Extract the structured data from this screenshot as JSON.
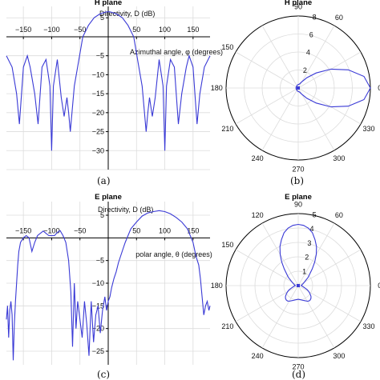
{
  "chart_data": [
    {
      "panel": "(a)",
      "type": "line",
      "title": "H plane",
      "xlabel": "Azimuthal angle, φ (degrees)",
      "ylabel": "Directivity, D (dB)",
      "xlim": [
        -180,
        180
      ],
      "ylim": [
        -35,
        8
      ],
      "xticks": [
        -150,
        -100,
        -50,
        50,
        100,
        150
      ],
      "yticks": [
        5,
        -5,
        -10,
        -15,
        -20,
        -25,
        -30
      ],
      "grid": true,
      "series": [
        {
          "x": [
            -180,
            -170,
            -162,
            -157,
            -150,
            -143,
            -138,
            -130,
            -124,
            -117,
            -110,
            -103,
            -100,
            -97,
            -90,
            -83,
            -78,
            -73,
            -70,
            -67,
            -60,
            -53,
            -45,
            -35,
            -25,
            -15,
            -5,
            0,
            5,
            15,
            25,
            35,
            45,
            53,
            60,
            67,
            70,
            73,
            78,
            83,
            90,
            97,
            100,
            103,
            110,
            117,
            124,
            130,
            138,
            143,
            150,
            157,
            162,
            170,
            180
          ],
          "y": [
            -5,
            -8,
            -15,
            -23,
            -8,
            -5,
            -8,
            -15,
            -23,
            -8,
            -6,
            -13,
            -30,
            -13,
            -6,
            -16,
            -21,
            -16,
            -20,
            -25,
            -13,
            -7,
            0,
            3,
            5,
            6,
            6.5,
            6.6,
            6.5,
            6,
            5,
            3,
            0,
            -7,
            -13,
            -25,
            -20,
            -16,
            -21,
            -16,
            -6,
            -13,
            -30,
            -13,
            -6,
            -8,
            -23,
            -15,
            -8,
            -5,
            -8,
            -23,
            -15,
            -8,
            -5
          ]
        }
      ]
    },
    {
      "panel": "(b)",
      "type": "polar",
      "title": "H plane",
      "rlim": [
        0,
        8
      ],
      "rticks": [
        2,
        4,
        6,
        8
      ],
      "angle_ticks": [
        0,
        30,
        60,
        90,
        120,
        150,
        180,
        210,
        240,
        270,
        300,
        330
      ],
      "angle_labels": [
        "0",
        "",
        "60",
        "90",
        "",
        "150",
        "180",
        "210",
        "240",
        "270",
        "300",
        "330"
      ],
      "series": [
        {
          "theta": [
            0,
            10,
            20,
            30,
            40,
            50,
            60,
            70,
            80,
            90,
            100,
            120,
            150,
            170,
            180,
            190,
            210,
            240,
            260,
            270,
            280,
            290,
            300,
            310,
            320,
            330,
            340,
            350
          ],
          "r": [
            8,
            7.4,
            5.9,
            4.2,
            2.6,
            1.5,
            0.8,
            0.5,
            0.4,
            0.4,
            0.35,
            0.3,
            0.25,
            0.25,
            0.25,
            0.25,
            0.25,
            0.3,
            0.35,
            0.4,
            0.4,
            0.5,
            0.8,
            1.5,
            2.6,
            4.2,
            5.9,
            7.4
          ]
        }
      ]
    },
    {
      "panel": "(c)",
      "type": "line",
      "title": "E plane",
      "xlabel": "polar angle, θ (degrees)",
      "ylabel": "Directivity, D (dB)",
      "xlim": [
        -180,
        180
      ],
      "ylim": [
        -28,
        8
      ],
      "xticks": [
        -150,
        -100,
        -50,
        50,
        100,
        150
      ],
      "yticks": [
        5,
        -5,
        -10,
        -15,
        -20,
        -25
      ],
      "grid": true,
      "series": [
        {
          "x": [
            -180,
            -178,
            -176,
            -174,
            -172,
            -170,
            -168,
            -166,
            -164,
            -162,
            -160,
            -158,
            -155,
            -150,
            -145,
            -140,
            -135,
            -130,
            -125,
            -120,
            -115,
            -110,
            -105,
            -100,
            -95,
            -90,
            -85,
            -80,
            -75,
            -70,
            -66,
            -63,
            -60,
            -57,
            -54,
            -50,
            -46,
            -42,
            -38,
            -34,
            -30,
            -26,
            -22,
            -18,
            -14,
            -10,
            -6,
            -3,
            0,
            3,
            6,
            10,
            14,
            18,
            22,
            26,
            30,
            35,
            40,
            50,
            60,
            70,
            80,
            90,
            100,
            110,
            120,
            130,
            140,
            150,
            155,
            160,
            163,
            166,
            169,
            172,
            175,
            178,
            180
          ],
          "y": [
            -18,
            -15,
            -22,
            -16,
            -14,
            -17,
            -27,
            -19,
            -14,
            -10,
            -6,
            -3,
            -1,
            0,
            0.5,
            0,
            -3,
            -1,
            0.5,
            1,
            1.5,
            1,
            0.5,
            0.5,
            0.5,
            1.2,
            1.6,
            0.5,
            -1,
            -5,
            -12,
            -24,
            -10,
            -20,
            -14,
            -18,
            -22,
            -14,
            -19,
            -26,
            -14,
            -23,
            -17,
            -15,
            -21,
            -16,
            -13,
            -16,
            -14,
            -13,
            -11,
            -9,
            -7.5,
            -5.5,
            -4,
            -2.5,
            -1,
            0.5,
            2,
            3.5,
            4.8,
            5.5,
            5.8,
            6,
            5.8,
            5.3,
            4.5,
            3.5,
            2,
            -1,
            -4,
            -6,
            -9,
            -13,
            -17,
            -15,
            -14,
            -16,
            -15
          ]
        }
      ]
    },
    {
      "panel": "(d)",
      "type": "polar",
      "title": "E plane",
      "rlim": [
        0,
        5
      ],
      "rticks": [
        1,
        2,
        3,
        4,
        5
      ],
      "angle_ticks": [
        0,
        30,
        60,
        90,
        120,
        150,
        180,
        210,
        240,
        270,
        300,
        330
      ],
      "angle_labels": [
        "0",
        "",
        "60",
        "90",
        "120",
        "150",
        "180",
        "210",
        "240",
        "270",
        "300",
        "330"
      ],
      "series": [
        {
          "theta": [
            0,
            10,
            20,
            30,
            40,
            50,
            55,
            60,
            65,
            70,
            75,
            80,
            85,
            90,
            95,
            100,
            105,
            110,
            115,
            120,
            125,
            130,
            140,
            150,
            160,
            170,
            180,
            190,
            200,
            205,
            210,
            215,
            220,
            225,
            230,
            235,
            240,
            250,
            260,
            270,
            280,
            290,
            300,
            305,
            310,
            315,
            320,
            325,
            330,
            335,
            340,
            350
          ],
          "r": [
            0.2,
            0.25,
            0.35,
            0.5,
            0.9,
            1.5,
            2,
            2.5,
            3,
            3.4,
            3.8,
            4.05,
            4.2,
            4.25,
            4.2,
            4.05,
            3.8,
            3.4,
            3,
            2.5,
            2,
            1.5,
            0.9,
            0.5,
            0.35,
            0.25,
            0.2,
            0.3,
            0.5,
            0.7,
            0.85,
            1,
            1.15,
            1.25,
            1.3,
            1.3,
            1.25,
            1.1,
            1,
            0.95,
            1,
            1.1,
            1.25,
            1.3,
            1.3,
            1.25,
            1.15,
            1,
            0.85,
            0.7,
            0.5,
            0.3
          ]
        }
      ]
    }
  ],
  "captions": {
    "a": "(a)",
    "b": "(b)",
    "c": "(c)",
    "d": "(d)"
  },
  "colors": {
    "curve": "#3a3ad6",
    "grid": "#dcdcdc",
    "axis": "#000000"
  }
}
